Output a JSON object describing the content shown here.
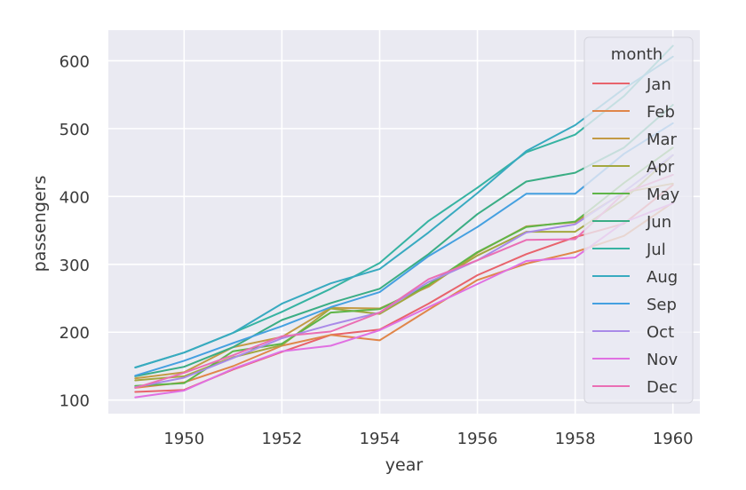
{
  "chart_data": {
    "type": "line",
    "xlabel": "year",
    "ylabel": "passengers",
    "xlim": [
      1948.45,
      1960.55
    ],
    "ylim": [
      80,
      645
    ],
    "x_ticks": [
      1950,
      1952,
      1954,
      1956,
      1958,
      1960
    ],
    "y_ticks": [
      100,
      200,
      300,
      400,
      500,
      600
    ],
    "grid": true,
    "legend_position": "top-right",
    "legend_title": "month",
    "x": [
      1949,
      1950,
      1951,
      1952,
      1953,
      1954,
      1955,
      1956,
      1957,
      1958,
      1959,
      1960
    ],
    "series": [
      {
        "name": "Jan",
        "color": "#e8636c",
        "values": [
          112,
          115,
          145,
          171,
          196,
          204,
          242,
          284,
          315,
          340,
          360,
          417
        ]
      },
      {
        "name": "Feb",
        "color": "#e0864a",
        "values": [
          118,
          126,
          150,
          180,
          196,
          188,
          233,
          277,
          301,
          318,
          342,
          391
        ]
      },
      {
        "name": "Mar",
        "color": "#c39a45",
        "values": [
          132,
          141,
          178,
          193,
          236,
          235,
          267,
          317,
          356,
          362,
          406,
          419
        ]
      },
      {
        "name": "Apr",
        "color": "#a3a73e",
        "values": [
          129,
          135,
          163,
          181,
          235,
          227,
          269,
          313,
          348,
          348,
          396,
          461
        ]
      },
      {
        "name": "May",
        "color": "#5fb548",
        "values": [
          121,
          125,
          172,
          183,
          229,
          234,
          270,
          318,
          355,
          363,
          420,
          472
        ]
      },
      {
        "name": "Jun",
        "color": "#3aad84",
        "values": [
          135,
          149,
          178,
          218,
          243,
          264,
          315,
          374,
          422,
          435,
          472,
          535
        ]
      },
      {
        "name": "Jul",
        "color": "#36b3a2",
        "values": [
          148,
          170,
          199,
          230,
          264,
          302,
          364,
          413,
          465,
          491,
          548,
          622
        ]
      },
      {
        "name": "Aug",
        "color": "#38aac0",
        "values": [
          148,
          170,
          199,
          242,
          272,
          293,
          347,
          405,
          467,
          505,
          559,
          606
        ]
      },
      {
        "name": "Sep",
        "color": "#45a0e0",
        "values": [
          136,
          158,
          184,
          209,
          237,
          259,
          312,
          355,
          404,
          404,
          463,
          508
        ]
      },
      {
        "name": "Oct",
        "color": "#a98ae8",
        "values": [
          119,
          133,
          162,
          191,
          211,
          229,
          274,
          306,
          347,
          359,
          407,
          461
        ]
      },
      {
        "name": "Nov",
        "color": "#e070e2",
        "values": [
          104,
          114,
          146,
          172,
          180,
          203,
          237,
          271,
          305,
          310,
          362,
          390
        ]
      },
      {
        "name": "Dec",
        "color": "#ea6fb4",
        "values": [
          118,
          140,
          166,
          194,
          201,
          229,
          278,
          306,
          336,
          337,
          405,
          432
        ]
      }
    ]
  }
}
